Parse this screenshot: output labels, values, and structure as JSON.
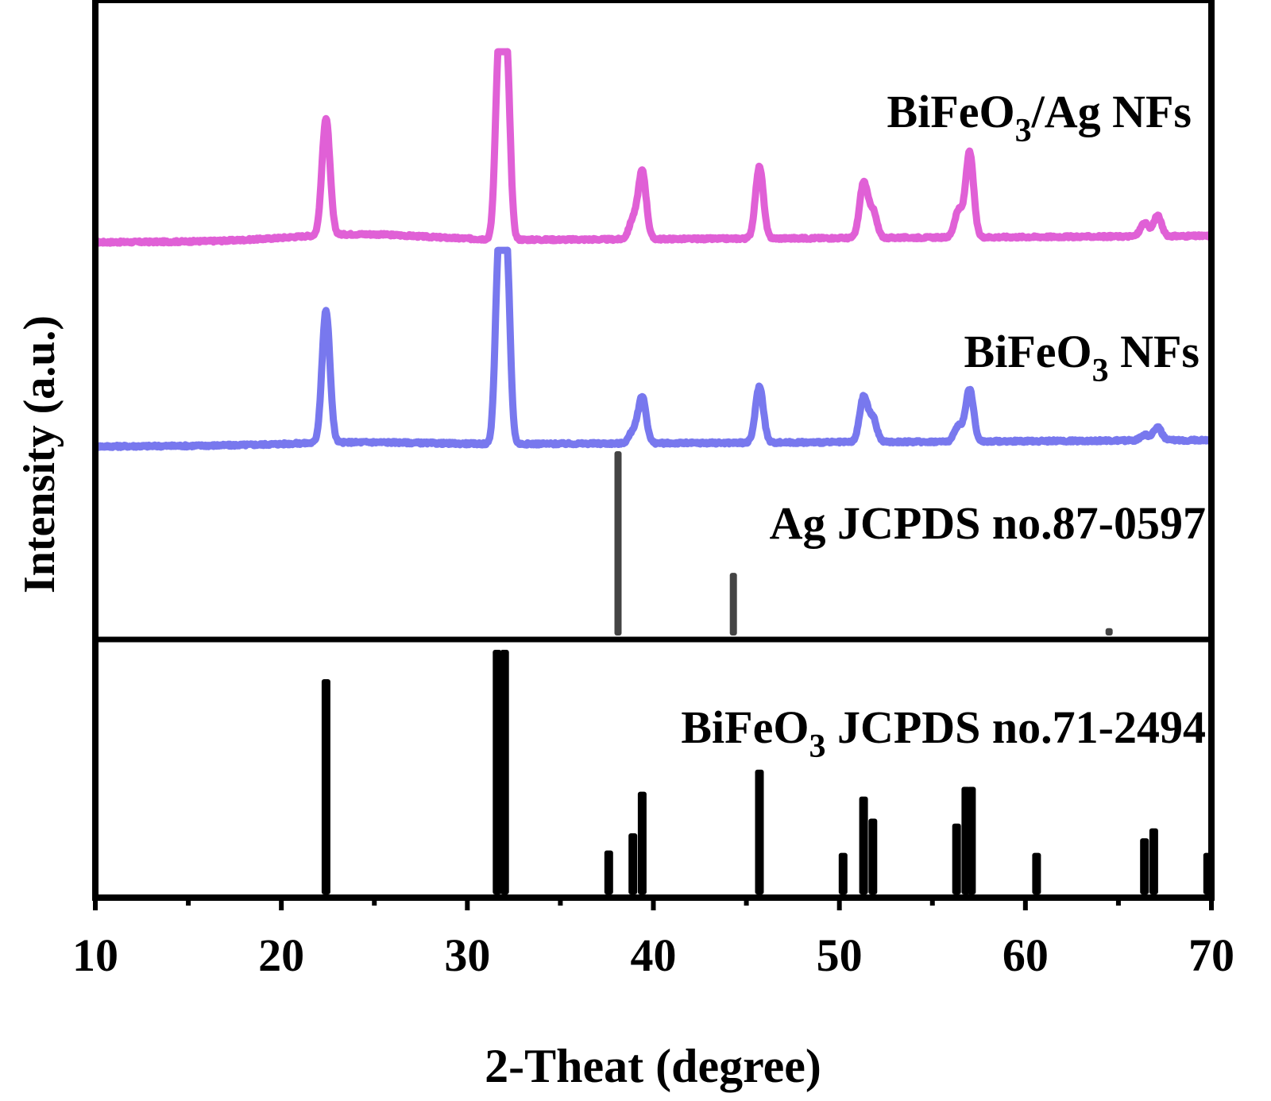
{
  "chart_data": {
    "type": "line",
    "xlabel": "2-Theat (degree)",
    "ylabel": "Intensity (a.u.)",
    "xlim": [
      10,
      70
    ],
    "x_ticks": [
      "10",
      "20",
      "30",
      "40",
      "50",
      "60",
      "70"
    ],
    "grid": false,
    "legend": "none",
    "series_labels": {
      "bfo_ag": {
        "main": "BiFeO",
        "sub": "3",
        "tail": "/Ag NFs"
      },
      "bfo": {
        "main": "BiFeO",
        "sub": "3",
        "tail": " NFs"
      },
      "ag_ref": {
        "main": "Ag JCPDS no.87-0597",
        "sub": "",
        "tail": ""
      },
      "bfo_ref": {
        "main": "BiFeO",
        "sub": "3",
        "tail": " JCPDS no.71-2494"
      }
    },
    "series": [
      {
        "key": "bfo_ag",
        "color": "#e060d6",
        "baseline": 0.05,
        "peaks": [
          {
            "x": 22.4,
            "h": 0.62
          },
          {
            "x": 31.7,
            "h": 1.0
          },
          {
            "x": 32.1,
            "h": 1.0
          },
          {
            "x": 38.9,
            "h": 0.1
          },
          {
            "x": 39.4,
            "h": 0.36
          },
          {
            "x": 45.7,
            "h": 0.38
          },
          {
            "x": 51.3,
            "h": 0.29
          },
          {
            "x": 51.8,
            "h": 0.14
          },
          {
            "x": 56.4,
            "h": 0.14
          },
          {
            "x": 57.0,
            "h": 0.45
          },
          {
            "x": 66.4,
            "h": 0.07
          },
          {
            "x": 67.1,
            "h": 0.11
          }
        ]
      },
      {
        "key": "bfo",
        "color": "#7878ee",
        "baseline": 0.03,
        "peaks": [
          {
            "x": 22.4,
            "h": 0.68
          },
          {
            "x": 31.7,
            "h": 1.0
          },
          {
            "x": 32.1,
            "h": 1.0
          },
          {
            "x": 38.9,
            "h": 0.06
          },
          {
            "x": 39.4,
            "h": 0.24
          },
          {
            "x": 45.7,
            "h": 0.29
          },
          {
            "x": 51.3,
            "h": 0.23
          },
          {
            "x": 51.8,
            "h": 0.12
          },
          {
            "x": 56.4,
            "h": 0.08
          },
          {
            "x": 57.0,
            "h": 0.27
          },
          {
            "x": 66.4,
            "h": 0.03
          },
          {
            "x": 67.1,
            "h": 0.07
          }
        ]
      }
    ],
    "reference_lines": {
      "ag": {
        "color": "#444444",
        "x": [
          38.1,
          44.3,
          64.5
        ],
        "intensity": [
          100,
          34,
          4
        ]
      },
      "bifeo3": {
        "color": "#000000",
        "x": [
          22.4,
          31.6,
          32.0,
          37.6,
          38.9,
          39.4,
          45.7,
          50.2,
          51.3,
          51.8,
          56.3,
          56.8,
          57.1,
          60.6,
          66.4,
          66.9,
          69.8
        ],
        "intensity": [
          88,
          100,
          100,
          18,
          25,
          42,
          51,
          17,
          40,
          31,
          29,
          44,
          44,
          17,
          23,
          27,
          17
        ]
      }
    }
  }
}
